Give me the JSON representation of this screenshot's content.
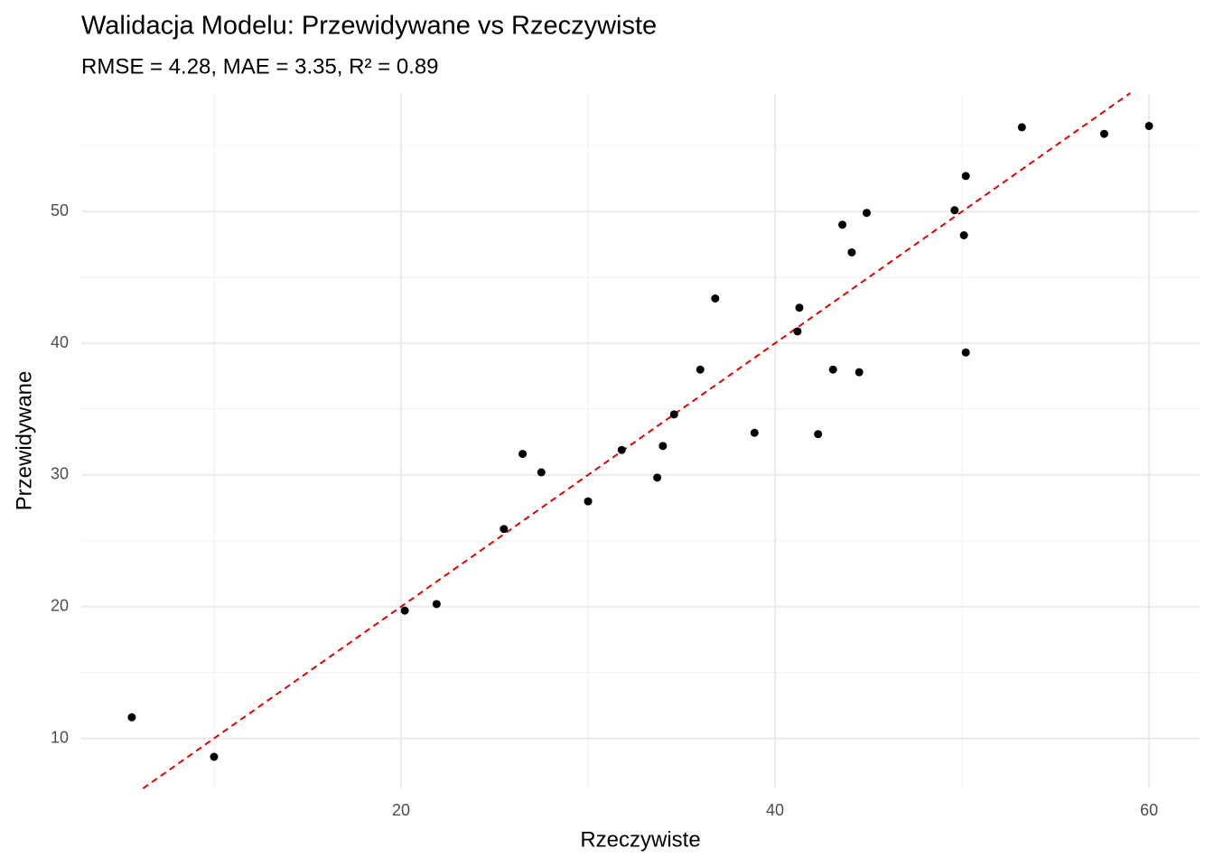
{
  "chart_data": {
    "type": "scatter",
    "title": "Walidacja Modelu: Przewidywane vs Rzeczywiste",
    "subtitle": "RMSE = 4.28, MAE = 3.35, R² = 0.89",
    "x_label": "Rzeczywiste",
    "y_label": "Przewidywane",
    "series": [
      {
        "color": "#000000",
        "x": [
          5.6,
          10.0,
          20.2,
          21.9,
          25.5,
          26.5,
          27.5,
          30.0,
          31.8,
          33.7,
          34.0,
          34.6,
          36.0,
          36.8,
          38.9,
          41.3,
          41.2,
          42.3,
          43.1,
          43.6,
          44.1,
          44.5,
          44.9,
          49.6,
          50.1,
          50.2,
          50.2,
          53.2,
          57.6,
          60.0
        ],
        "values": [
          11.6,
          8.6,
          19.7,
          20.2,
          25.9,
          31.6,
          30.2,
          28.0,
          31.9,
          29.8,
          32.2,
          34.6,
          38.0,
          43.4,
          33.2,
          42.7,
          40.9,
          33.1,
          38.0,
          49.0,
          46.9,
          37.8,
          49.9,
          50.1,
          48.2,
          52.7,
          39.3,
          56.4,
          55.9,
          56.5
        ]
      }
    ],
    "reference_line": {
      "slope": 1,
      "intercept": 0,
      "color": "#e00000",
      "dashed": true
    },
    "xlim": [
      2.9,
      62.7
    ],
    "ylim": [
      6.2,
      59.0
    ],
    "xticks": [
      20,
      40,
      60
    ],
    "yticks": [
      10,
      20,
      30,
      40,
      50
    ],
    "x_minor_ticks": [
      10,
      30,
      50
    ],
    "y_minor_ticks": [
      15,
      25,
      35,
      45,
      55
    ],
    "grid": true
  }
}
